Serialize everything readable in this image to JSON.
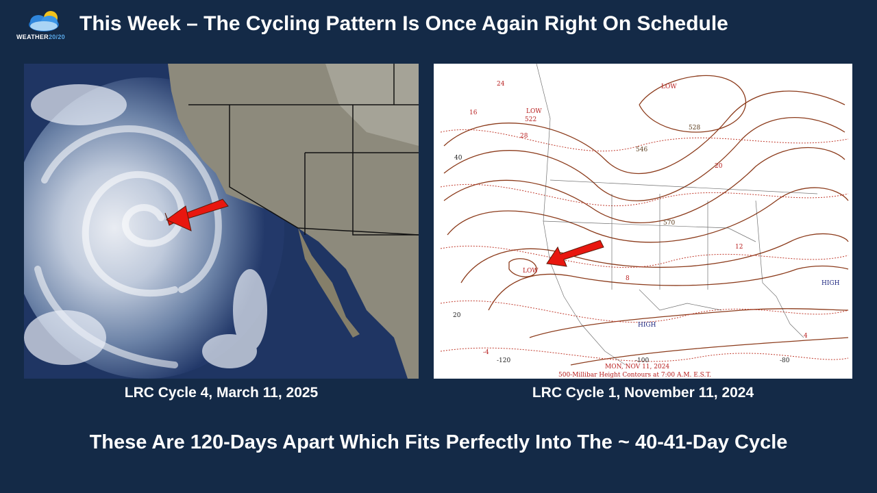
{
  "header": {
    "logo": {
      "icon": "cloud-sun-icon",
      "text_main": "WEATHER",
      "text_accent": "20/20"
    },
    "title": "This Week – The Cycling Pattern Is Once Again Right On Schedule"
  },
  "left_panel": {
    "caption": "LRC Cycle 4, March 11, 2025",
    "arrow_color": "#e8170f"
  },
  "right_panel": {
    "caption": "LRC Cycle 1, November 11, 2024",
    "map": {
      "labels": {
        "low_nw": "LOW",
        "low_nw_value": "522",
        "low_sw": "LOW",
        "low_north": "LOW",
        "high_south": "HIGH",
        "high_east": "HIGH",
        "contour_570": "570",
        "contour_546": "546",
        "contour_528": "528",
        "lat_40": "40",
        "lat_20": "20",
        "lon_120": "-120",
        "lon_100": "-100",
        "lon_80": "-80",
        "val_24": "24",
        "val_16": "16",
        "val_20": "20",
        "val_28": "28",
        "val_12": "12",
        "val_8": "8",
        "val_4": "4",
        "val_neg4": "-4"
      },
      "date_line": "MON, NOV 11, 2024",
      "product_line": "500-Millibar Height Contours at 7:00 A.M. E.S.T."
    },
    "arrow_color": "#e8170f"
  },
  "footer": {
    "text": "These Are 120-Days Apart Which Fits Perfectly Into The ~ 40-41-Day Cycle"
  }
}
